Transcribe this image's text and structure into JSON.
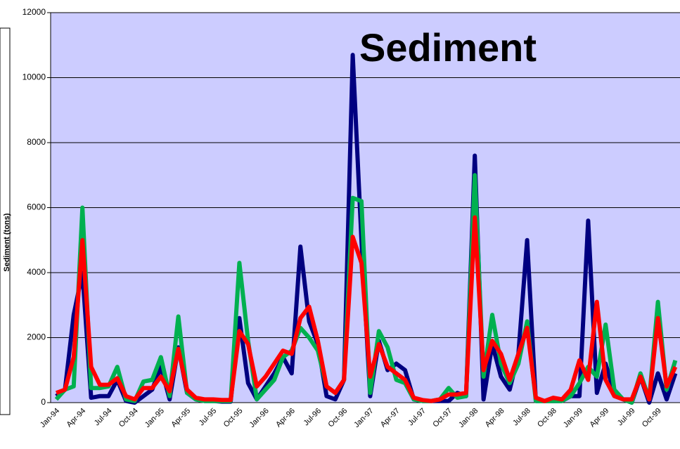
{
  "chart_data": {
    "type": "line",
    "title": "Sediment",
    "y_label": "Sediment (tons)",
    "categories": [
      "Jan-94",
      null,
      null,
      "Apr-94",
      null,
      null,
      "Jul-94",
      null,
      null,
      "Oct-94",
      null,
      null,
      "Jan-95",
      null,
      null,
      "Apr-95",
      null,
      null,
      "Jul-95",
      null,
      null,
      "Oct-95",
      null,
      null,
      "Jan-96",
      null,
      null,
      "Apr-96",
      null,
      null,
      "Jul-96",
      null,
      null,
      "Oct-96",
      null,
      null,
      "Jan-97",
      null,
      null,
      "Apr-97",
      null,
      null,
      "Jul-97",
      null,
      null,
      "Oct-97",
      null,
      null,
      "Jan-98",
      null,
      null,
      "Apr-98",
      null,
      null,
      "Jul-98",
      null,
      null,
      "Oct-98",
      null,
      null,
      "Jan-99",
      null,
      null,
      "Apr-99",
      null,
      null,
      "Jul-99",
      null,
      null,
      "Oct-99",
      null,
      null
    ],
    "series": [
      {
        "color": "#000080",
        "values": [
          200,
          400,
          2700,
          4000,
          150,
          200,
          200,
          700,
          50,
          0,
          200,
          400,
          1100,
          100,
          1700,
          300,
          100,
          50,
          50,
          30,
          30,
          2600,
          600,
          100,
          500,
          900,
          1400,
          900,
          4800,
          2500,
          1800,
          200,
          100,
          700,
          10700,
          5000,
          200,
          1900,
          1000,
          1200,
          1000,
          100,
          50,
          50,
          50,
          50,
          300,
          200,
          7600,
          100,
          1800,
          800,
          400,
          1500,
          5000,
          50,
          50,
          50,
          50,
          200,
          200,
          5600,
          300,
          1200,
          300,
          100,
          0,
          800,
          0,
          900,
          100,
          900
        ]
      },
      {
        "color": "#00b050",
        "values": [
          100,
          400,
          500,
          6000,
          450,
          450,
          500,
          1100,
          100,
          50,
          650,
          700,
          1400,
          200,
          2650,
          300,
          100,
          50,
          50,
          50,
          50,
          4300,
          1900,
          100,
          400,
          700,
          1400,
          1600,
          2300,
          2000,
          1600,
          500,
          300,
          700,
          6300,
          6200,
          300,
          2200,
          1700,
          700,
          600,
          100,
          50,
          50,
          100,
          450,
          150,
          200,
          7000,
          800,
          2700,
          1200,
          600,
          1200,
          2500,
          50,
          50,
          50,
          50,
          200,
          600,
          1100,
          800,
          2400,
          400,
          100,
          0,
          900,
          100,
          3100,
          400,
          1300
        ]
      },
      {
        "color": "#ff0000",
        "values": [
          300,
          400,
          1400,
          5000,
          1100,
          550,
          550,
          750,
          200,
          100,
          450,
          450,
          800,
          350,
          1650,
          400,
          150,
          100,
          100,
          80,
          80,
          2200,
          1800,
          500,
          800,
          1200,
          1600,
          1500,
          2600,
          2950,
          1900,
          500,
          300,
          700,
          5100,
          4300,
          800,
          1800,
          1100,
          900,
          700,
          150,
          80,
          50,
          100,
          250,
          250,
          300,
          5700,
          1000,
          1900,
          1500,
          700,
          1500,
          2300,
          150,
          50,
          150,
          100,
          400,
          1300,
          700,
          3100,
          700,
          200,
          100,
          100,
          800,
          100,
          2600,
          500,
          1100
        ]
      }
    ],
    "ylim": [
      0,
      12000
    ],
    "yticks": [
      0,
      2000,
      4000,
      6000,
      8000,
      10000,
      12000
    ],
    "grid": true,
    "plot_background": "#ccccff"
  }
}
